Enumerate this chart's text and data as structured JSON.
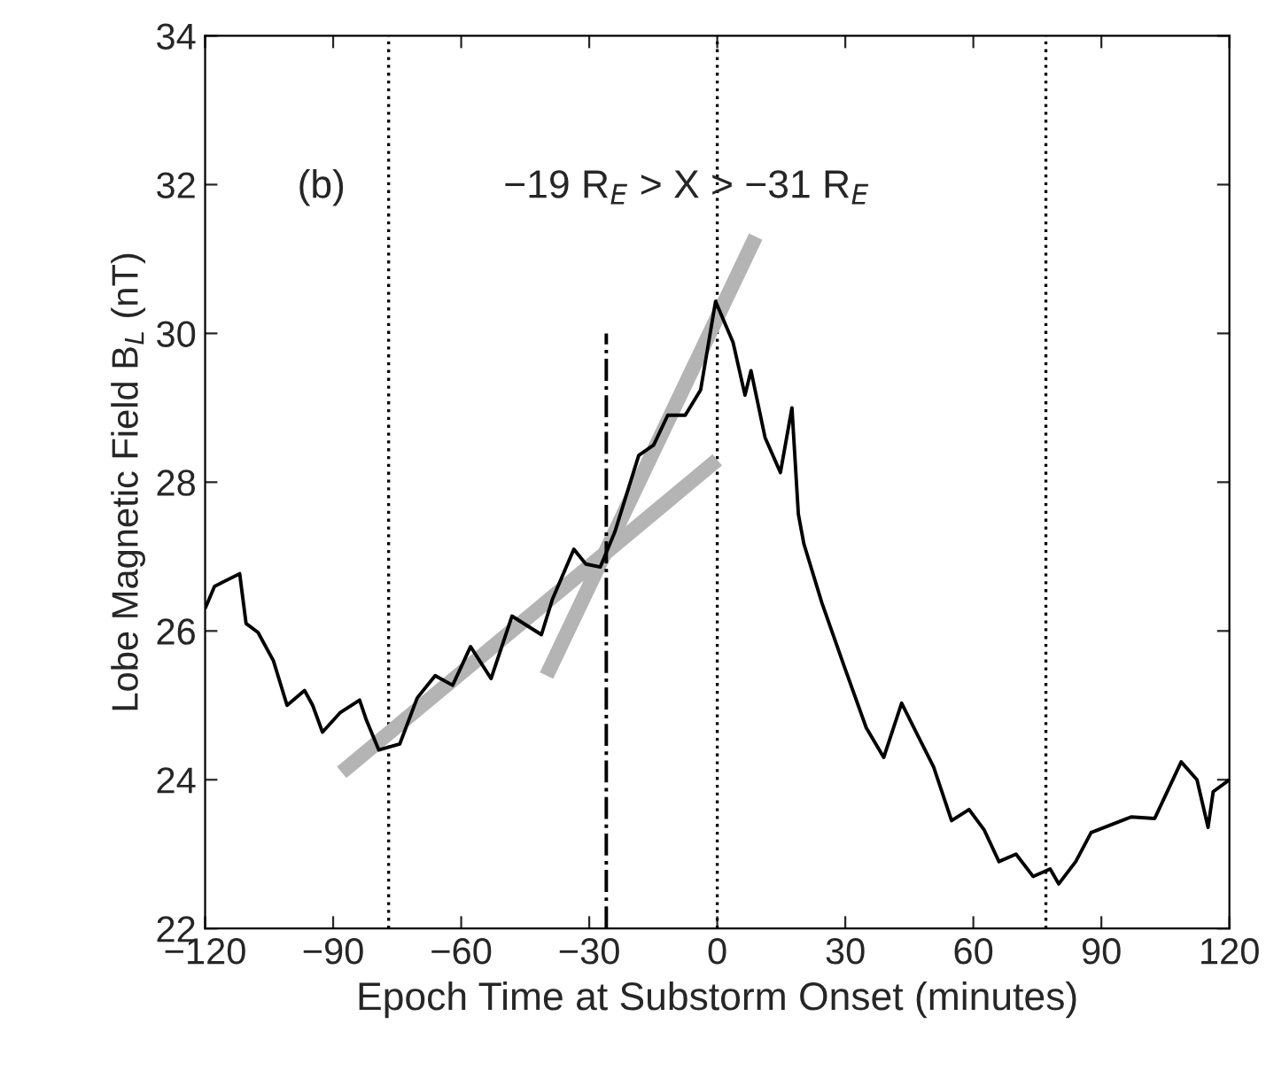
{
  "chart_data": {
    "type": "line",
    "xlabel": "Epoch Time at Substorm Onset (minutes)",
    "ylabel": "Lobe Magnetic Field B$_{L}$ (nT)",
    "annotations": [
      "(b)",
      "−19 R$_{E}$ > X > −31 R$_{E}$"
    ],
    "xlim": [
      -120,
      120
    ],
    "xticks": [
      {
        "value": -120,
        "label": "−120"
      },
      {
        "value": -90,
        "label": "−90"
      },
      {
        "value": -60,
        "label": "−60"
      },
      {
        "value": -30,
        "label": "−30"
      },
      0,
      30,
      60,
      90,
      120
    ],
    "ylim": [
      22,
      34
    ],
    "yticks": [
      22,
      24,
      26,
      28,
      30,
      32,
      34
    ],
    "grid": false,
    "legend": false,
    "series": [
      {
        "color": "#000000",
        "line_style": "solid",
        "x": [
          -120,
          -117.8,
          -111.9,
          -110.4,
          -107.6,
          -104,
          -100.8,
          -96.7,
          -94.8,
          -92.5,
          -88.4,
          -83.8,
          -82.2,
          -79.3,
          -74.4,
          -70.3,
          -66.1,
          -62,
          -57.8,
          -53,
          -48.1,
          -41.2,
          -38.6,
          -33.6,
          -30.8,
          -27.4,
          -24,
          -18.4,
          -14.9,
          -11.6,
          -7.5,
          -3.9,
          -0.4,
          3.7,
          6.5,
          7.9,
          11.2,
          14.8,
          17.5,
          19,
          20.3,
          24.5,
          29.9,
          34.9,
          39,
          43.2,
          46.6,
          50.7,
          54.9,
          59,
          62.5,
          66,
          70,
          74,
          78,
          80,
          84,
          87.6,
          97,
          102.5,
          108.7,
          112.4,
          115,
          116.2,
          120
        ],
        "values": [
          26.3,
          26.6,
          26.77,
          26.1,
          25.98,
          25.6,
          25.0,
          25.2,
          25.0,
          24.64,
          24.9,
          25.07,
          24.8,
          24.4,
          24.48,
          25.1,
          25.4,
          25.27,
          25.79,
          25.36,
          26.2,
          25.95,
          26.43,
          27.1,
          26.9,
          26.86,
          27.33,
          28.36,
          28.5,
          28.9,
          28.9,
          29.24,
          30.43,
          29.88,
          29.17,
          29.5,
          28.6,
          28.13,
          29.0,
          27.57,
          27.17,
          26.38,
          25.5,
          24.7,
          24.3,
          25.03,
          24.64,
          24.17,
          23.45,
          23.6,
          23.33,
          22.9,
          23.0,
          22.7,
          22.8,
          22.6,
          22.9,
          23.29,
          23.5,
          23.48,
          24.24,
          24.0,
          23.36,
          23.84,
          24.0
        ]
      },
      {
        "color": "#b4b4b4",
        "line_style": "solid",
        "x": [
          -88,
          0
        ],
        "values": [
          24.1,
          28.3
        ]
      },
      {
        "color": "#b4b4b4",
        "line_style": "solid",
        "x": [
          -40,
          9
        ],
        "values": [
          25.4,
          31.3
        ]
      },
      {
        "color": "#000000",
        "line_style": "dashdot",
        "x": [
          -26,
          -26
        ],
        "values": [
          22,
          30
        ]
      }
    ],
    "ref_lines": [
      {
        "axis": "x",
        "value": -77,
        "line_style": "dotted",
        "color": "#000000"
      },
      {
        "axis": "x",
        "value": 0,
        "line_style": "dotted",
        "color": "#000000"
      },
      {
        "axis": "x",
        "value": 77,
        "line_style": "dotted",
        "color": "#000000"
      }
    ]
  }
}
